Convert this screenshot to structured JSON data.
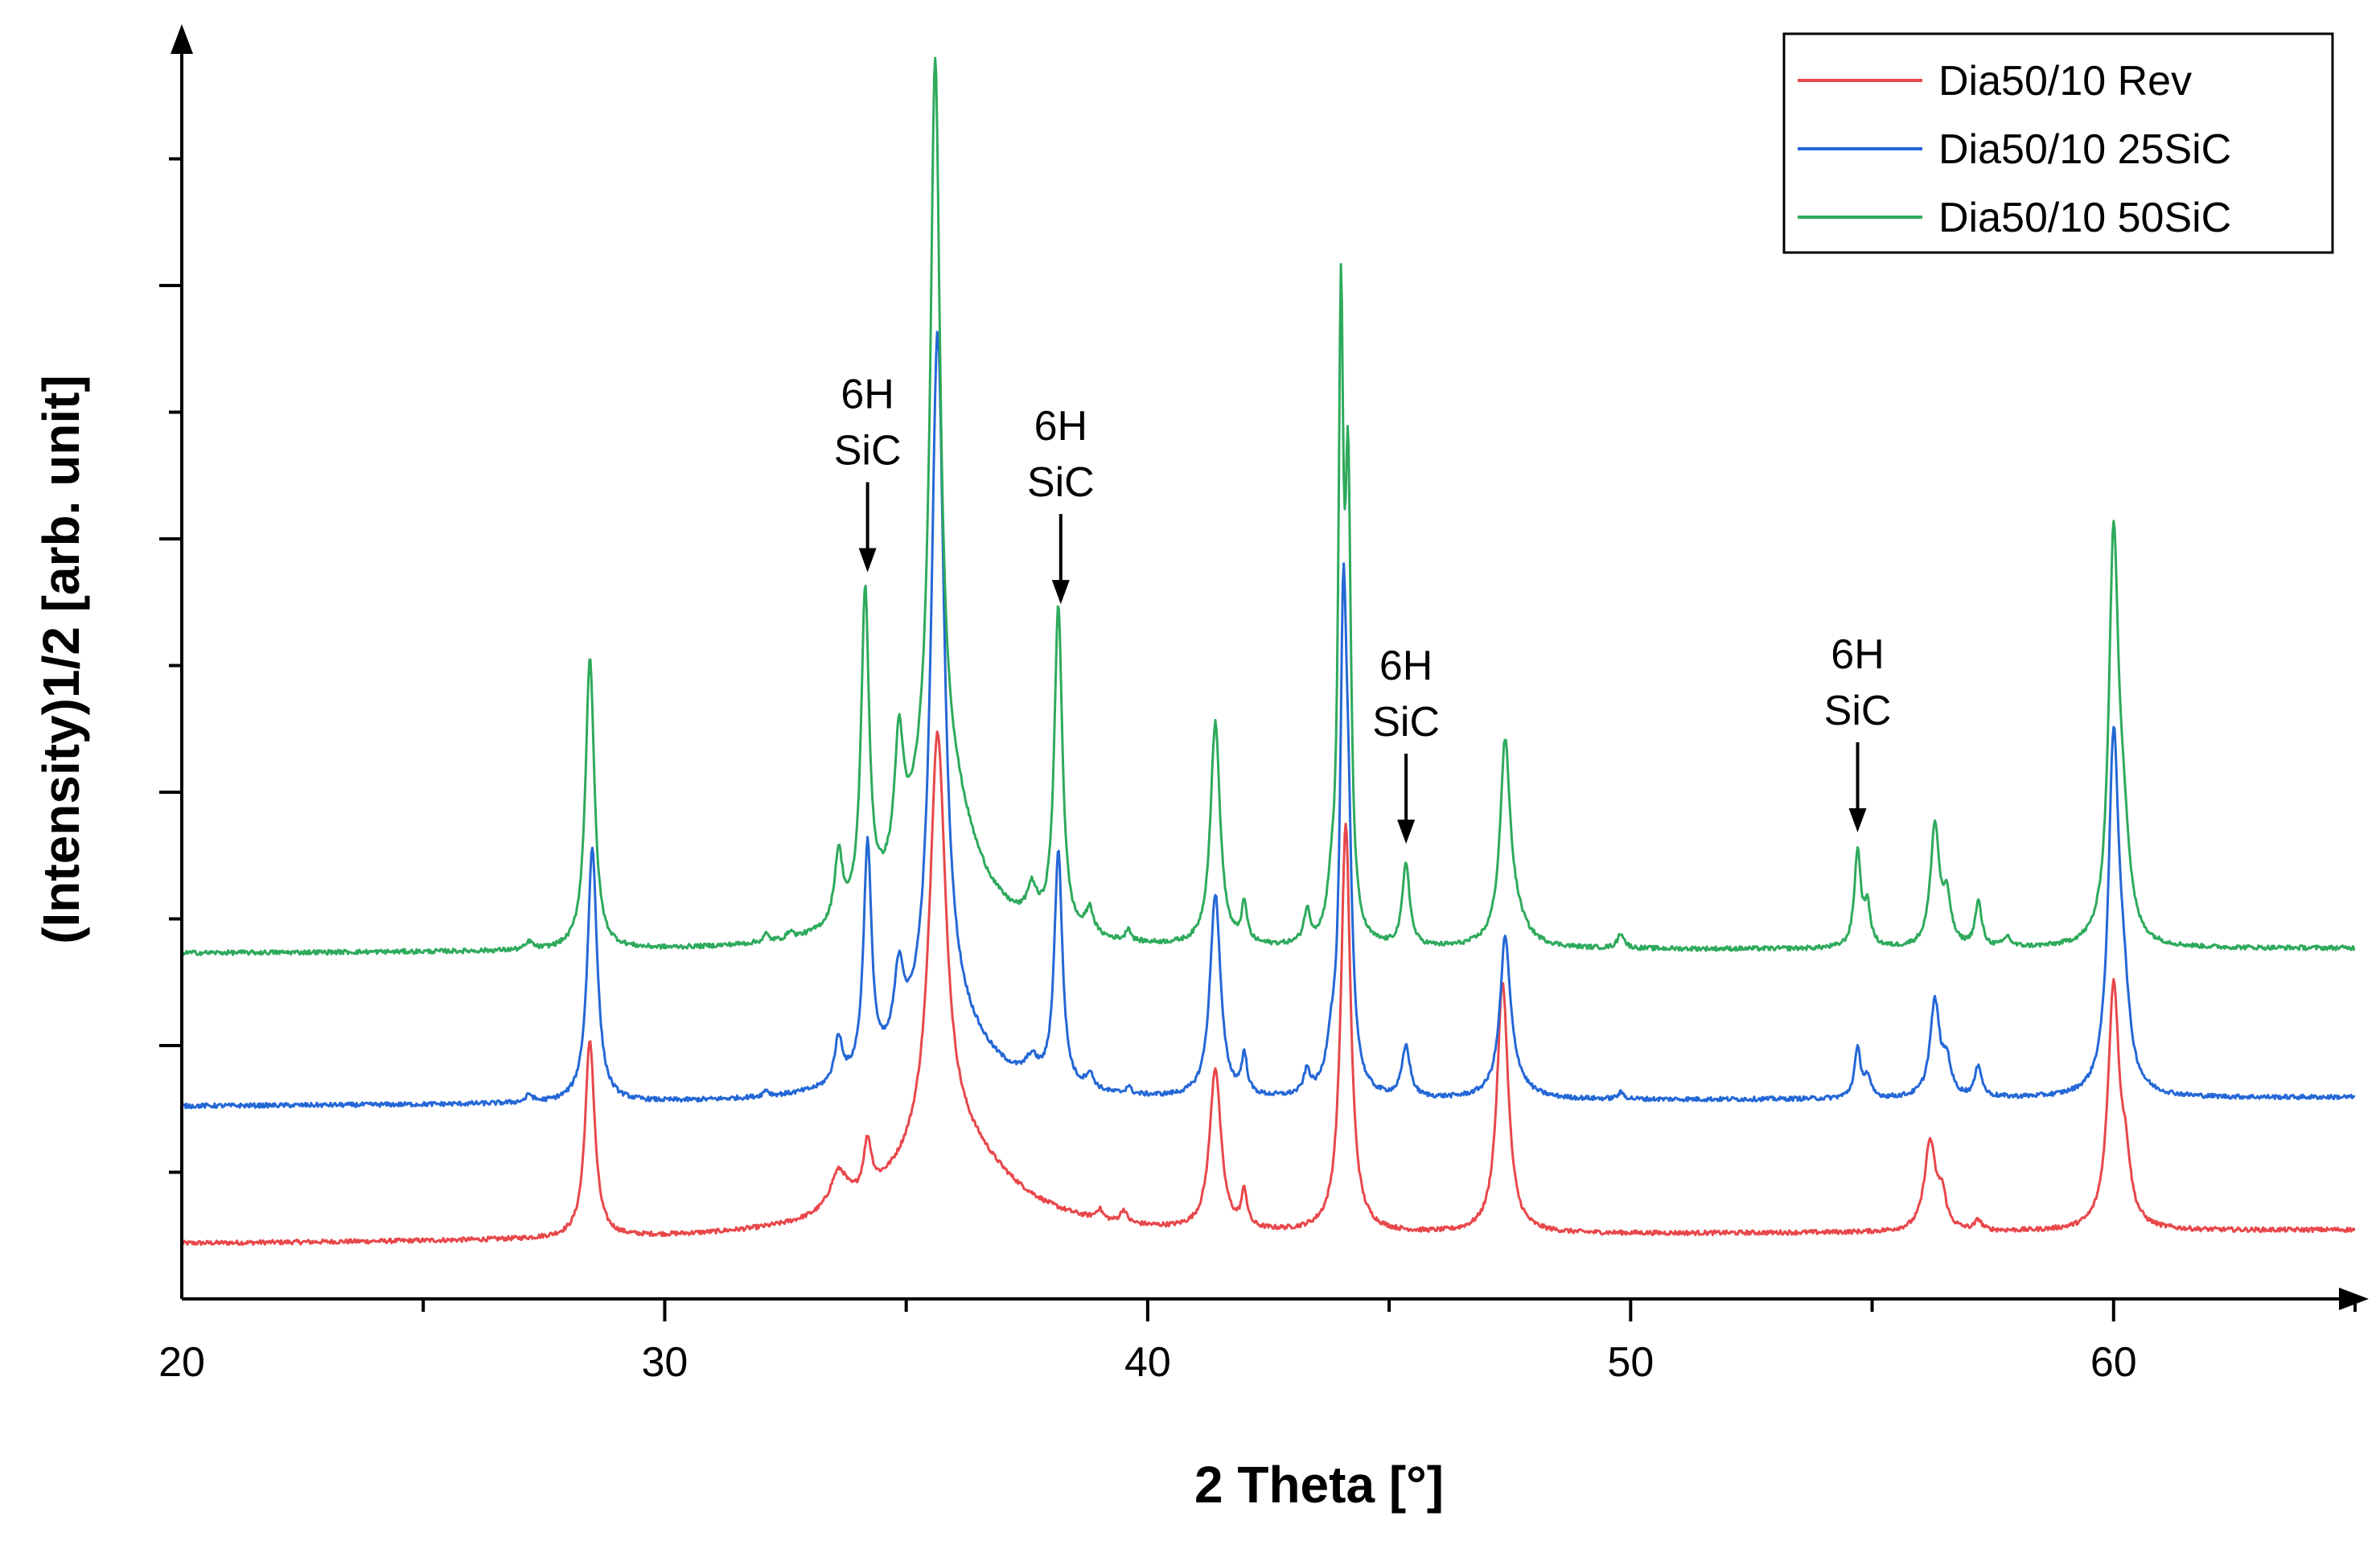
{
  "chart_data": {
    "type": "line",
    "title": "",
    "xlabel": "2 Theta [°]",
    "ylabel": "(Intensity)1/2 [arb. unit]",
    "xlim": [
      20,
      65
    ],
    "ylim": [
      0,
      100
    ],
    "x_ticks": [
      20,
      30,
      40,
      50,
      60
    ],
    "x_tick_labels": [
      "20",
      "30",
      "40",
      "50",
      "60"
    ],
    "y_tick_labels_shown": false,
    "legend_position": "top-right",
    "series": [
      {
        "name": "Dia50/10 Rev",
        "color": "#e8474a",
        "baseline_start": 4.3,
        "baseline_end": 5.4,
        "peaks": [
          {
            "x": 28.45,
            "h": 15.5,
            "w": 0.12
          },
          {
            "x": 33.6,
            "h": 3.0,
            "w": 0.22
          },
          {
            "x": 34.2,
            "h": 4.0,
            "w": 0.1
          },
          {
            "x": 35.65,
            "h": 32.0,
            "w": 0.2
          },
          {
            "x": 35.9,
            "h": 8.0,
            "w": 1.4
          },
          {
            "x": 39.0,
            "h": 0.8,
            "w": 0.08
          },
          {
            "x": 39.5,
            "h": 1.0,
            "w": 0.08
          },
          {
            "x": 41.4,
            "h": 12.7,
            "w": 0.14
          },
          {
            "x": 42.0,
            "h": 2.8,
            "w": 0.07
          },
          {
            "x": 44.1,
            "h": 32.0,
            "w": 0.12
          },
          {
            "x": 47.35,
            "h": 19.7,
            "w": 0.14
          },
          {
            "x": 56.2,
            "h": 7.0,
            "w": 0.14
          },
          {
            "x": 56.45,
            "h": 2.4,
            "w": 0.1
          },
          {
            "x": 57.2,
            "h": 0.8,
            "w": 0.08
          },
          {
            "x": 60.0,
            "h": 19.0,
            "w": 0.14
          },
          {
            "x": 60.25,
            "h": 4.0,
            "w": 0.12
          }
        ]
      },
      {
        "name": "Dia50/10 25SiC",
        "color": "#2467d6",
        "baseline_start": 15.1,
        "baseline_end": 15.8,
        "peaks": [
          {
            "x": 27.2,
            "h": 0.6,
            "w": 0.08
          },
          {
            "x": 28.5,
            "h": 20.0,
            "w": 0.12
          },
          {
            "x": 32.1,
            "h": 0.5,
            "w": 0.06
          },
          {
            "x": 33.6,
            "h": 3.5,
            "w": 0.1
          },
          {
            "x": 34.2,
            "h": 18.0,
            "w": 0.1
          },
          {
            "x": 34.85,
            "h": 6.0,
            "w": 0.12
          },
          {
            "x": 35.65,
            "h": 54.0,
            "w": 0.16
          },
          {
            "x": 35.8,
            "h": 6.5,
            "w": 1.0
          },
          {
            "x": 37.6,
            "h": 1.5,
            "w": 0.15
          },
          {
            "x": 38.15,
            "h": 18.5,
            "w": 0.1
          },
          {
            "x": 38.8,
            "h": 1.2,
            "w": 0.1
          },
          {
            "x": 39.6,
            "h": 0.6,
            "w": 0.06
          },
          {
            "x": 41.4,
            "h": 16.0,
            "w": 0.13
          },
          {
            "x": 42.0,
            "h": 3.0,
            "w": 0.07
          },
          {
            "x": 43.3,
            "h": 1.8,
            "w": 0.08
          },
          {
            "x": 43.8,
            "h": 3.0,
            "w": 0.12
          },
          {
            "x": 44.05,
            "h": 33.0,
            "w": 0.08
          },
          {
            "x": 44.15,
            "h": 16.0,
            "w": 0.1
          },
          {
            "x": 45.35,
            "h": 4.0,
            "w": 0.1
          },
          {
            "x": 47.4,
            "h": 11.0,
            "w": 0.12
          },
          {
            "x": 47.5,
            "h": 2.0,
            "w": 0.3
          },
          {
            "x": 49.8,
            "h": 0.5,
            "w": 0.08
          },
          {
            "x": 54.7,
            "h": 3.8,
            "w": 0.08
          },
          {
            "x": 54.9,
            "h": 1.5,
            "w": 0.08
          },
          {
            "x": 56.3,
            "h": 7.5,
            "w": 0.12
          },
          {
            "x": 56.55,
            "h": 2.5,
            "w": 0.1
          },
          {
            "x": 57.2,
            "h": 2.5,
            "w": 0.08
          },
          {
            "x": 60.0,
            "h": 27.0,
            "w": 0.13
          },
          {
            "x": 60.2,
            "h": 6.0,
            "w": 0.15
          }
        ]
      },
      {
        "name": "Dia50/10 50SiC",
        "color": "#2eaa5c",
        "baseline_start": 27.1,
        "baseline_end": 27.5,
        "peaks": [
          {
            "x": 27.2,
            "h": 0.6,
            "w": 0.08
          },
          {
            "x": 28.45,
            "h": 23.0,
            "w": 0.11
          },
          {
            "x": 32.1,
            "h": 0.6,
            "w": 0.06
          },
          {
            "x": 32.6,
            "h": 0.6,
            "w": 0.06
          },
          {
            "x": 33.6,
            "h": 5.5,
            "w": 0.1
          },
          {
            "x": 34.15,
            "h": 25.0,
            "w": 0.1
          },
          {
            "x": 34.85,
            "h": 10.0,
            "w": 0.11
          },
          {
            "x": 35.6,
            "h": 56.0,
            "w": 0.12
          },
          {
            "x": 35.7,
            "h": 14.0,
            "w": 0.8
          },
          {
            "x": 37.6,
            "h": 2.5,
            "w": 0.12
          },
          {
            "x": 38.15,
            "h": 25.5,
            "w": 0.1
          },
          {
            "x": 38.8,
            "h": 2.0,
            "w": 0.1
          },
          {
            "x": 39.6,
            "h": 1.0,
            "w": 0.06
          },
          {
            "x": 41.4,
            "h": 17.5,
            "w": 0.12
          },
          {
            "x": 42.0,
            "h": 3.0,
            "w": 0.07
          },
          {
            "x": 43.3,
            "h": 2.5,
            "w": 0.08
          },
          {
            "x": 43.8,
            "h": 3.0,
            "w": 0.1
          },
          {
            "x": 44.0,
            "h": 47.0,
            "w": 0.06
          },
          {
            "x": 44.15,
            "h": 34.0,
            "w": 0.07
          },
          {
            "x": 45.35,
            "h": 6.5,
            "w": 0.09
          },
          {
            "x": 47.4,
            "h": 14.5,
            "w": 0.12
          },
          {
            "x": 47.55,
            "h": 2.5,
            "w": 0.3
          },
          {
            "x": 49.8,
            "h": 1.2,
            "w": 0.08
          },
          {
            "x": 54.7,
            "h": 7.5,
            "w": 0.08
          },
          {
            "x": 54.9,
            "h": 3.0,
            "w": 0.08
          },
          {
            "x": 56.3,
            "h": 9.5,
            "w": 0.11
          },
          {
            "x": 56.55,
            "h": 3.5,
            "w": 0.1
          },
          {
            "x": 57.2,
            "h": 3.5,
            "w": 0.08
          },
          {
            "x": 57.8,
            "h": 0.8,
            "w": 0.08
          },
          {
            "x": 60.0,
            "h": 31.0,
            "w": 0.12
          },
          {
            "x": 60.2,
            "h": 7.0,
            "w": 0.15
          }
        ]
      }
    ],
    "annotations": [
      {
        "line1": "6H",
        "line2": "SiC",
        "x": 34.2,
        "y_arrow_tip": 57.0
      },
      {
        "line1": "6H",
        "line2": "SiC",
        "x": 38.2,
        "y_arrow_tip": 54.5
      },
      {
        "line1": "6H",
        "line2": "SiC",
        "x": 45.35,
        "y_arrow_tip": 35.7
      },
      {
        "line1": "6H",
        "line2": "SiC",
        "x": 54.7,
        "y_arrow_tip": 36.6
      }
    ]
  }
}
